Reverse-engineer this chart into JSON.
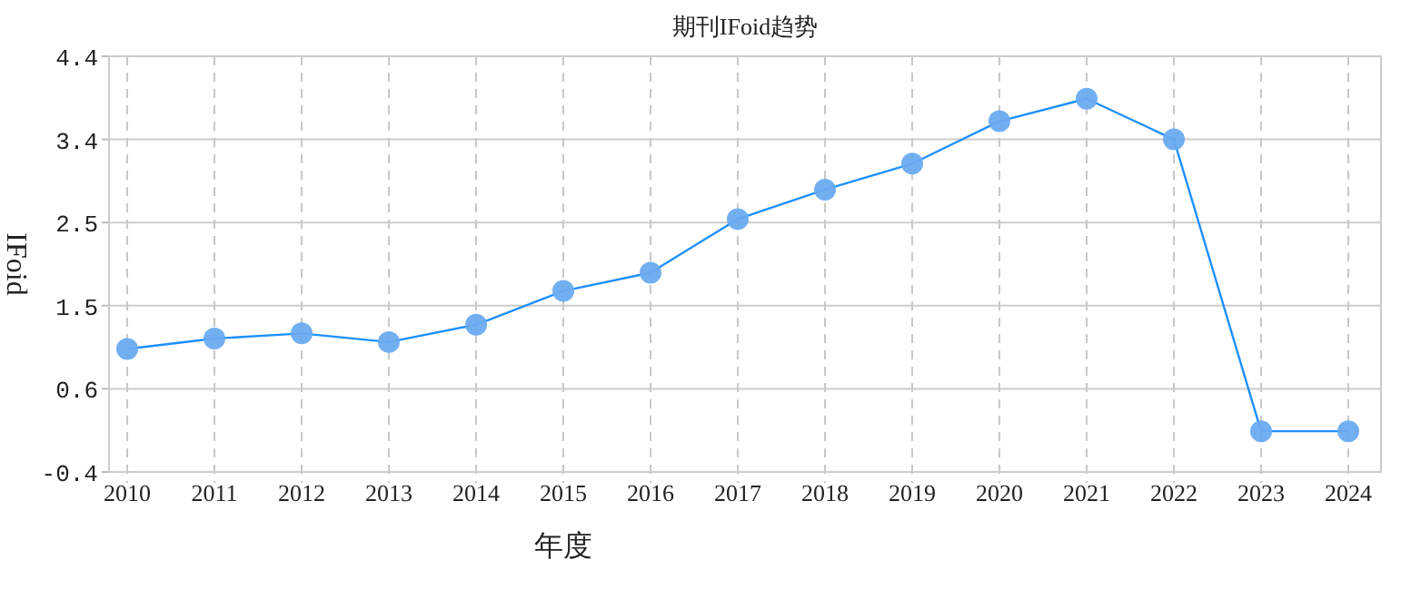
{
  "chart_data": {
    "type": "line",
    "title": "期刊IFoid趋势",
    "xlabel": "年度",
    "ylabel": "IFoid",
    "categories": [
      "2010",
      "2011",
      "2012",
      "2013",
      "2014",
      "2015",
      "2016",
      "2017",
      "2018",
      "2019",
      "2020",
      "2021",
      "2022",
      "2023",
      "2024"
    ],
    "series": [
      {
        "color": "#1e90ff",
        "values": [
          1.02,
          1.14,
          1.2,
          1.1,
          1.3,
          1.69,
          1.9,
          2.52,
          2.86,
          3.16,
          3.65,
          3.91,
          3.44,
          0.07,
          0.07
        ]
      }
    ],
    "ylim": [
      -0.4,
      4.4
    ],
    "yticks": [
      {
        "value": -0.4,
        "label": "-0.4"
      },
      {
        "value": 0.56,
        "label": "0.6"
      },
      {
        "value": 1.52,
        "label": "1.5"
      },
      {
        "value": 2.48,
        "label": "2.5"
      },
      {
        "value": 3.44,
        "label": "3.4"
      },
      {
        "value": 4.4,
        "label": "4.4"
      }
    ],
    "grid": true,
    "marker": "circle",
    "line_style": "solid"
  }
}
